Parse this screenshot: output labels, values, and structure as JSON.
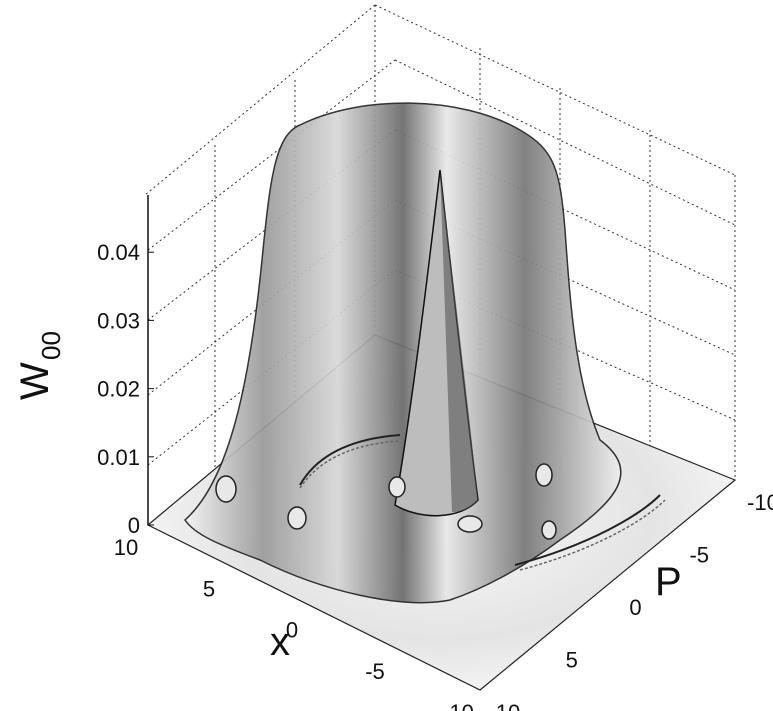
{
  "chart_data": {
    "type": "surface",
    "title": "",
    "xlabel": "x",
    "ylabel": "P",
    "zlabel_main": "W",
    "zlabel_sub": "00",
    "x_ticks": [
      "10",
      "5",
      "0",
      "-5",
      "-10"
    ],
    "p_ticks": [
      "-10",
      "-5",
      "0",
      "5",
      "10"
    ],
    "z_ticks": [
      "0",
      "0.01",
      "0.02",
      "0.03",
      "0.04"
    ],
    "xlim": [
      -10,
      10
    ],
    "plim": [
      -10,
      10
    ],
    "zlim": [
      0,
      0.045
    ],
    "grid": true,
    "surface_description_points": {
      "plateau_height": 0.044,
      "central_peak_height": 0.042,
      "plateau_extent": [
        -7,
        7
      ]
    }
  }
}
